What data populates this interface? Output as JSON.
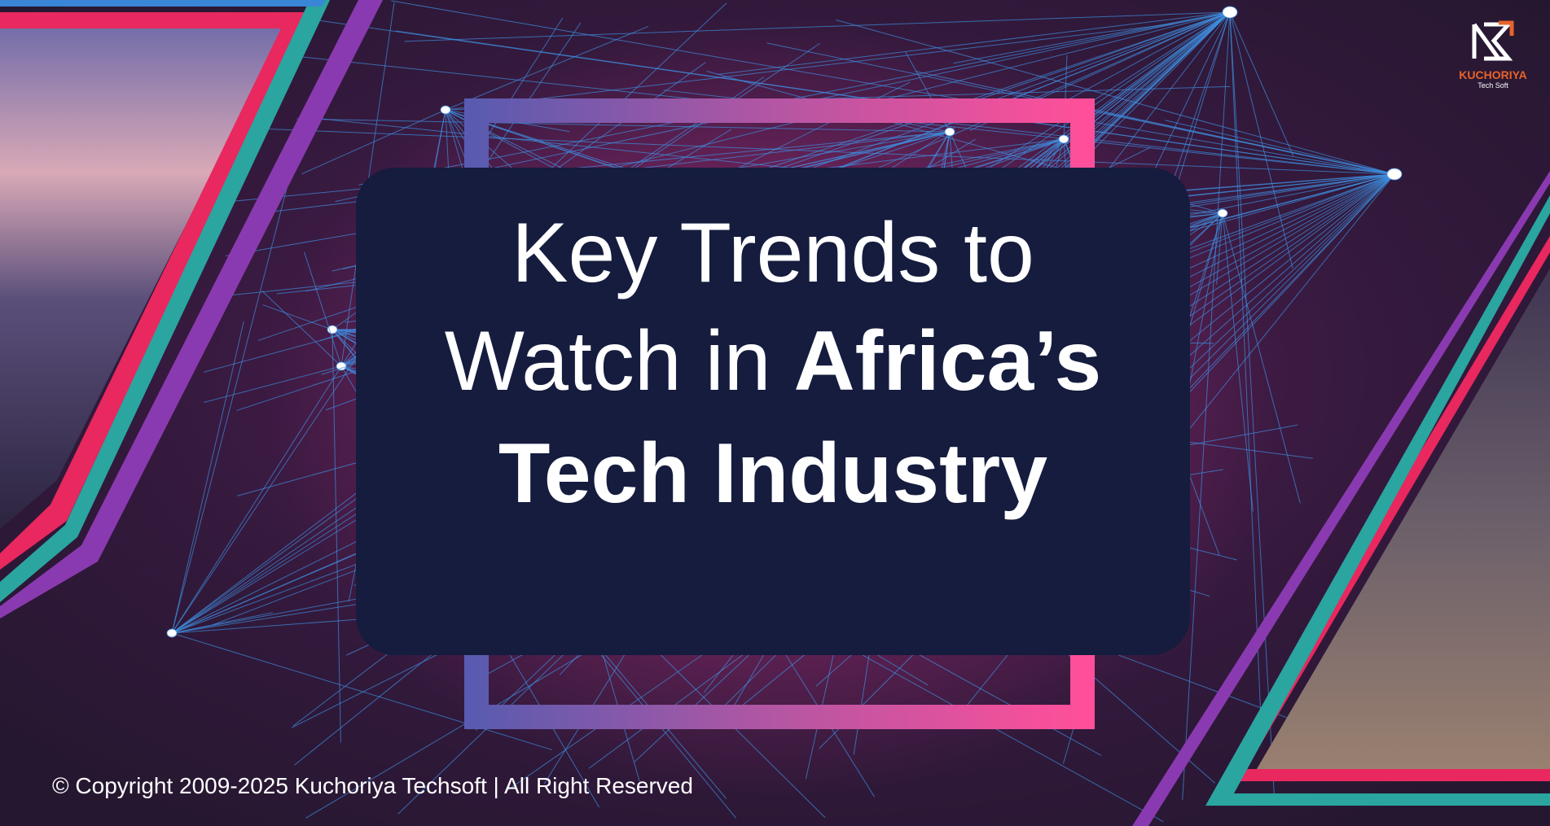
{
  "title": {
    "line1": "Key Trends to",
    "line2_regular": "Watch in",
    "line2_bold": "Africa’s",
    "line3": "Tech Industry"
  },
  "logo": {
    "name": "KUCHORIYA",
    "tagline": "Tech Soft"
  },
  "footer": {
    "copyright": "© Copyright 2009-2025 Kuchoriya Techsoft | All Right Reserved"
  }
}
